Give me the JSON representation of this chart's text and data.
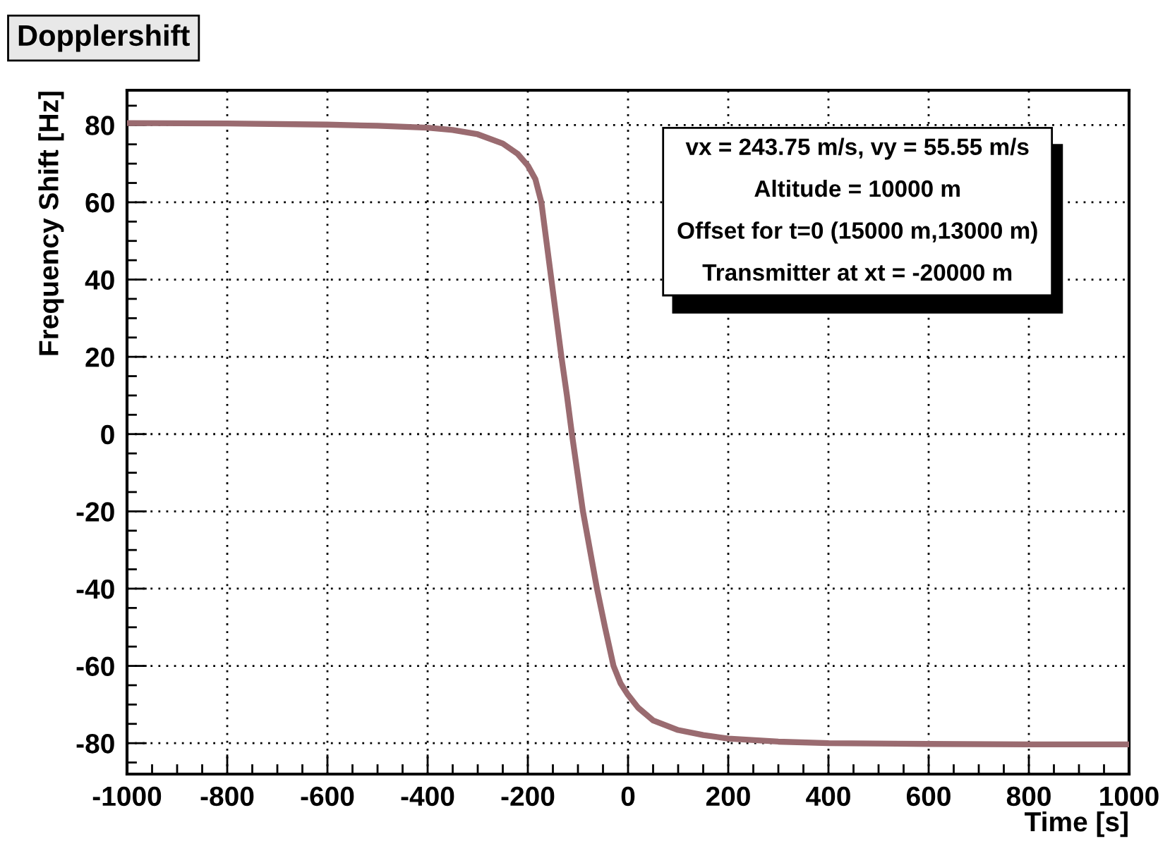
{
  "chart_data": {
    "type": "line",
    "title": "Dopplershift",
    "xlabel": "Time [s]",
    "ylabel": "Frequency Shift [Hz]",
    "annotations": [
      "vx = 243.75 m/s, vy = 55.55 m/s",
      "Altitude = 10000 m",
      "Offset for t=0 (15000 m,13000 m)",
      "Transmitter at xt = -20000 m"
    ],
    "x": [
      -1000,
      -800,
      -600,
      -500,
      -400,
      -350,
      -300,
      -250,
      -220,
      -200,
      -185,
      -173,
      -163,
      -153,
      -143,
      -133,
      -122,
      -112,
      -101,
      -90,
      -76,
      -62,
      -46,
      -29,
      -15,
      0,
      20,
      50,
      100,
      150,
      200,
      300,
      400,
      600,
      800,
      1000
    ],
    "series": [
      {
        "color": "#9a6b70",
        "values": [
          80.5,
          80.4,
          80.1,
          79.8,
          79.3,
          78.7,
          77.6,
          75.2,
          72.5,
          69.5,
          66,
          60,
          50,
          40,
          30,
          20,
          10,
          0,
          -10,
          -20,
          -30,
          -40,
          -50,
          -60,
          -64.5,
          -67.5,
          -70.8,
          -74.1,
          -76.6,
          -77.9,
          -78.8,
          -79.6,
          -80,
          -80.2,
          -80.3,
          -80.3
        ]
      }
    ],
    "xlim": [
      -1000,
      1000
    ],
    "ylim": [
      -88,
      89
    ],
    "xticks": [
      -1000,
      -800,
      -600,
      -400,
      -200,
      0,
      200,
      400,
      600,
      800,
      1000
    ],
    "yticks": [
      -80,
      -60,
      -40,
      -20,
      0,
      20,
      40,
      60,
      80
    ],
    "grid": true,
    "marker": "none",
    "line_style": "solid",
    "legend": false
  }
}
